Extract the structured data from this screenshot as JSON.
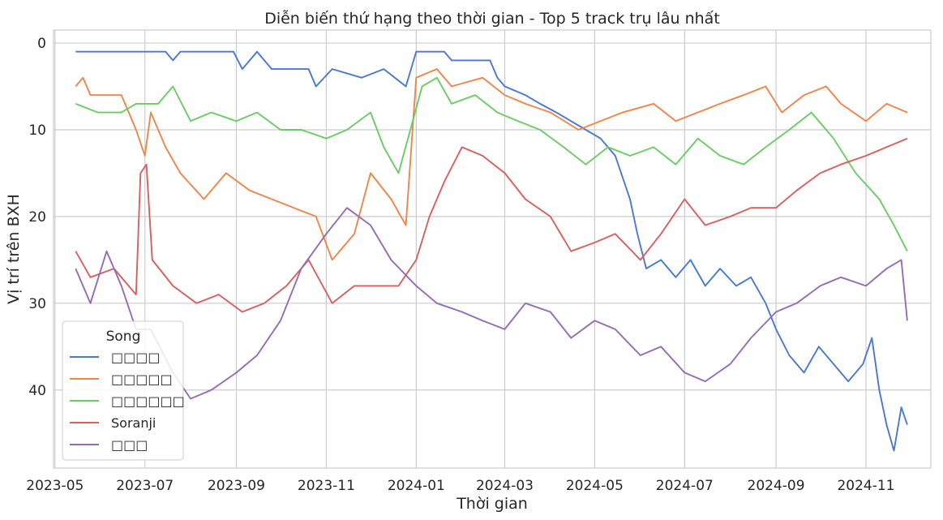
{
  "chart_data": {
    "type": "line",
    "title": "Diễn biến thứ hạng theo thời gian - Top 5 track trụ lâu nhất",
    "xlabel": "Thời gian",
    "ylabel": "Vị trí trên BXH",
    "y_inverted": true,
    "ylim": [
      49,
      -1.5
    ],
    "y_ticks": [
      0,
      10,
      20,
      30,
      40
    ],
    "y_tick_labels": [
      "0",
      "10",
      "20",
      "30",
      "40"
    ],
    "xlim": [
      "2023-04-30",
      "2024-12-15"
    ],
    "x_ticks": [
      "2023-05-01",
      "2023-07-01",
      "2023-09-01",
      "2023-11-01",
      "2024-01-01",
      "2024-03-01",
      "2024-05-01",
      "2024-07-01",
      "2024-09-01",
      "2024-11-01"
    ],
    "x_tick_labels": [
      "2023-05",
      "2023-07",
      "2023-09",
      "2023-11",
      "2024-01",
      "2024-03",
      "2024-05",
      "2024-07",
      "2024-09",
      "2024-11"
    ],
    "grid": true,
    "legend": {
      "title": "Song",
      "position": "lower-left"
    },
    "series": [
      {
        "name": "□□□□",
        "color": "#4878d0",
        "points": [
          [
            "2023-05-15",
            1
          ],
          [
            "2023-07-15",
            1
          ],
          [
            "2023-07-20",
            2
          ],
          [
            "2023-07-25",
            1
          ],
          [
            "2023-08-30",
            1
          ],
          [
            "2023-09-05",
            3
          ],
          [
            "2023-09-15",
            1
          ],
          [
            "2023-09-25",
            3
          ],
          [
            "2023-10-20",
            3
          ],
          [
            "2023-10-25",
            5
          ],
          [
            "2023-11-05",
            3
          ],
          [
            "2023-11-25",
            4
          ],
          [
            "2023-12-10",
            3
          ],
          [
            "2023-12-25",
            5
          ],
          [
            "2024-01-01",
            1
          ],
          [
            "2024-01-20",
            1
          ],
          [
            "2024-01-25",
            2
          ],
          [
            "2024-02-20",
            2
          ],
          [
            "2024-02-25",
            4
          ],
          [
            "2024-03-01",
            5
          ],
          [
            "2024-03-15",
            6
          ],
          [
            "2024-03-25",
            7
          ],
          [
            "2024-04-05",
            8
          ],
          [
            "2024-04-15",
            9
          ],
          [
            "2024-04-25",
            10
          ],
          [
            "2024-05-05",
            11
          ],
          [
            "2024-05-15",
            13
          ],
          [
            "2024-05-25",
            18
          ],
          [
            "2024-05-30",
            22
          ],
          [
            "2024-06-05",
            26
          ],
          [
            "2024-06-15",
            25
          ],
          [
            "2024-06-25",
            27
          ],
          [
            "2024-07-05",
            25
          ],
          [
            "2024-07-15",
            28
          ],
          [
            "2024-07-25",
            26
          ],
          [
            "2024-08-05",
            28
          ],
          [
            "2024-08-15",
            27
          ],
          [
            "2024-08-25",
            30
          ],
          [
            "2024-09-01",
            33
          ],
          [
            "2024-09-10",
            36
          ],
          [
            "2024-09-20",
            38
          ],
          [
            "2024-09-30",
            35
          ],
          [
            "2024-10-10",
            37
          ],
          [
            "2024-10-20",
            39
          ],
          [
            "2024-10-30",
            37
          ],
          [
            "2024-11-05",
            34
          ],
          [
            "2024-11-10",
            40
          ],
          [
            "2024-11-15",
            44
          ],
          [
            "2024-11-20",
            47
          ],
          [
            "2024-11-25",
            42
          ],
          [
            "2024-11-29",
            44
          ]
        ]
      },
      {
        "name": "□□□□□",
        "color": "#ee854a",
        "points": [
          [
            "2023-05-15",
            5
          ],
          [
            "2023-05-20",
            4
          ],
          [
            "2023-05-25",
            6
          ],
          [
            "2023-06-15",
            6
          ],
          [
            "2023-06-25",
            10
          ],
          [
            "2023-07-01",
            13
          ],
          [
            "2023-07-05",
            8
          ],
          [
            "2023-07-15",
            12
          ],
          [
            "2023-07-25",
            15
          ],
          [
            "2023-08-10",
            18
          ],
          [
            "2023-08-25",
            15
          ],
          [
            "2023-09-10",
            17
          ],
          [
            "2023-09-25",
            18
          ],
          [
            "2023-10-10",
            19
          ],
          [
            "2023-10-25",
            20
          ],
          [
            "2023-11-05",
            25
          ],
          [
            "2023-11-20",
            22
          ],
          [
            "2023-12-01",
            15
          ],
          [
            "2023-12-15",
            18
          ],
          [
            "2023-12-25",
            21
          ],
          [
            "2024-01-01",
            4
          ],
          [
            "2024-01-15",
            3
          ],
          [
            "2024-01-25",
            5
          ],
          [
            "2024-02-15",
            4
          ],
          [
            "2024-03-01",
            6
          ],
          [
            "2024-03-15",
            7
          ],
          [
            "2024-04-01",
            8
          ],
          [
            "2024-04-20",
            10
          ],
          [
            "2024-05-05",
            9
          ],
          [
            "2024-05-20",
            8
          ],
          [
            "2024-06-10",
            7
          ],
          [
            "2024-06-25",
            9
          ],
          [
            "2024-07-10",
            8
          ],
          [
            "2024-07-25",
            7
          ],
          [
            "2024-08-10",
            6
          ],
          [
            "2024-08-25",
            5
          ],
          [
            "2024-09-05",
            8
          ],
          [
            "2024-09-20",
            6
          ],
          [
            "2024-10-05",
            5
          ],
          [
            "2024-10-15",
            7
          ],
          [
            "2024-11-01",
            9
          ],
          [
            "2024-11-15",
            7
          ],
          [
            "2024-11-29",
            8
          ]
        ]
      },
      {
        "name": "□□□□□□",
        "color": "#6acc64",
        "points": [
          [
            "2023-05-15",
            7
          ],
          [
            "2023-05-30",
            8
          ],
          [
            "2023-06-15",
            8
          ],
          [
            "2023-06-25",
            7
          ],
          [
            "2023-07-10",
            7
          ],
          [
            "2023-07-20",
            5
          ],
          [
            "2023-08-01",
            9
          ],
          [
            "2023-08-15",
            8
          ],
          [
            "2023-09-01",
            9
          ],
          [
            "2023-09-15",
            8
          ],
          [
            "2023-10-01",
            10
          ],
          [
            "2023-10-15",
            10
          ],
          [
            "2023-11-01",
            11
          ],
          [
            "2023-11-15",
            10
          ],
          [
            "2023-12-01",
            8
          ],
          [
            "2023-12-10",
            12
          ],
          [
            "2023-12-20",
            15
          ],
          [
            "2023-12-28",
            10
          ],
          [
            "2024-01-05",
            5
          ],
          [
            "2024-01-15",
            4
          ],
          [
            "2024-01-25",
            7
          ],
          [
            "2024-02-10",
            6
          ],
          [
            "2024-02-25",
            8
          ],
          [
            "2024-03-10",
            9
          ],
          [
            "2024-03-25",
            10
          ],
          [
            "2024-04-10",
            12
          ],
          [
            "2024-04-25",
            14
          ],
          [
            "2024-05-10",
            12
          ],
          [
            "2024-05-25",
            13
          ],
          [
            "2024-06-10",
            12
          ],
          [
            "2024-06-25",
            14
          ],
          [
            "2024-07-10",
            11
          ],
          [
            "2024-07-25",
            13
          ],
          [
            "2024-08-10",
            14
          ],
          [
            "2024-08-25",
            12
          ],
          [
            "2024-09-10",
            10
          ],
          [
            "2024-09-25",
            8
          ],
          [
            "2024-10-10",
            11
          ],
          [
            "2024-10-25",
            15
          ],
          [
            "2024-11-10",
            18
          ],
          [
            "2024-11-20",
            21
          ],
          [
            "2024-11-29",
            24
          ]
        ]
      },
      {
        "name": "Soranji",
        "color": "#d65f5f",
        "points": [
          [
            "2023-05-15",
            24
          ],
          [
            "2023-05-25",
            27
          ],
          [
            "2023-06-10",
            26
          ],
          [
            "2023-06-25",
            29
          ],
          [
            "2023-06-28",
            15
          ],
          [
            "2023-07-02",
            14
          ],
          [
            "2023-07-06",
            25
          ],
          [
            "2023-07-20",
            28
          ],
          [
            "2023-08-05",
            30
          ],
          [
            "2023-08-20",
            29
          ],
          [
            "2023-09-05",
            31
          ],
          [
            "2023-09-20",
            30
          ],
          [
            "2023-10-05",
            28
          ],
          [
            "2023-10-20",
            25
          ],
          [
            "2023-11-05",
            30
          ],
          [
            "2023-11-20",
            28
          ],
          [
            "2023-12-05",
            28
          ],
          [
            "2023-12-20",
            28
          ],
          [
            "2024-01-01",
            25
          ],
          [
            "2024-01-10",
            20
          ],
          [
            "2024-01-20",
            16
          ],
          [
            "2024-02-01",
            12
          ],
          [
            "2024-02-15",
            13
          ],
          [
            "2024-03-01",
            15
          ],
          [
            "2024-03-15",
            18
          ],
          [
            "2024-04-01",
            20
          ],
          [
            "2024-04-15",
            24
          ],
          [
            "2024-05-01",
            23
          ],
          [
            "2024-05-15",
            22
          ],
          [
            "2024-06-01",
            25
          ],
          [
            "2024-06-15",
            22
          ],
          [
            "2024-07-01",
            18
          ],
          [
            "2024-07-15",
            21
          ],
          [
            "2024-08-01",
            20
          ],
          [
            "2024-08-15",
            19
          ],
          [
            "2024-09-01",
            19
          ],
          [
            "2024-09-15",
            17
          ],
          [
            "2024-10-01",
            15
          ],
          [
            "2024-10-15",
            14
          ],
          [
            "2024-11-01",
            13
          ],
          [
            "2024-11-15",
            12
          ],
          [
            "2024-11-29",
            11
          ]
        ]
      },
      {
        "name": "□□□",
        "color": "#956cb4",
        "points": [
          [
            "2023-05-15",
            26
          ],
          [
            "2023-05-25",
            30
          ],
          [
            "2023-06-05",
            24
          ],
          [
            "2023-06-15",
            28
          ],
          [
            "2023-06-25",
            33
          ],
          [
            "2023-07-05",
            33
          ],
          [
            "2023-07-20",
            38
          ],
          [
            "2023-08-01",
            41
          ],
          [
            "2023-08-15",
            40
          ],
          [
            "2023-09-01",
            38
          ],
          [
            "2023-09-15",
            36
          ],
          [
            "2023-10-01",
            32
          ],
          [
            "2023-10-15",
            26
          ],
          [
            "2023-11-01",
            22
          ],
          [
            "2023-11-15",
            19
          ],
          [
            "2023-12-01",
            21
          ],
          [
            "2023-12-15",
            25
          ],
          [
            "2024-01-01",
            28
          ],
          [
            "2024-01-15",
            30
          ],
          [
            "2024-02-01",
            31
          ],
          [
            "2024-02-15",
            32
          ],
          [
            "2024-03-01",
            33
          ],
          [
            "2024-03-15",
            30
          ],
          [
            "2024-04-01",
            31
          ],
          [
            "2024-04-15",
            34
          ],
          [
            "2024-05-01",
            32
          ],
          [
            "2024-05-15",
            33
          ],
          [
            "2024-06-01",
            36
          ],
          [
            "2024-06-15",
            35
          ],
          [
            "2024-07-01",
            38
          ],
          [
            "2024-07-15",
            39
          ],
          [
            "2024-08-01",
            37
          ],
          [
            "2024-08-15",
            34
          ],
          [
            "2024-09-01",
            31
          ],
          [
            "2024-09-15",
            30
          ],
          [
            "2024-10-01",
            28
          ],
          [
            "2024-10-15",
            27
          ],
          [
            "2024-11-01",
            28
          ],
          [
            "2024-11-15",
            26
          ],
          [
            "2024-11-25",
            25
          ],
          [
            "2024-11-29",
            32
          ]
        ]
      }
    ]
  }
}
